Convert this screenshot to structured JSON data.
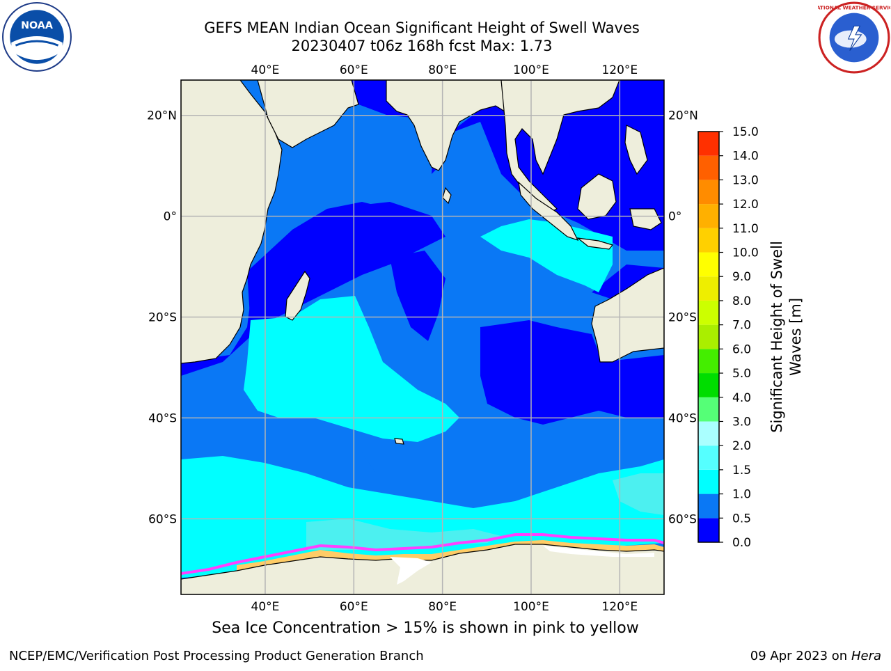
{
  "title": {
    "line1": "GEFS MEAN Indian Ocean Significant Height of Swell Waves",
    "line2": "20230407 t06z 168h fcst   Max: 1.73"
  },
  "map": {
    "lon_range": [
      21,
      130
    ],
    "lat_range": [
      -75,
      27
    ],
    "lon_ticks": [
      {
        "value": 40,
        "label": "40°E"
      },
      {
        "value": 60,
        "label": "60°E"
      },
      {
        "value": 80,
        "label": "80°E"
      },
      {
        "value": 100,
        "label": "100°E"
      },
      {
        "value": 120,
        "label": "120°E"
      }
    ],
    "lat_ticks": [
      {
        "value": 20,
        "label": "20°N"
      },
      {
        "value": 0,
        "label": "0°"
      },
      {
        "value": -20,
        "label": "20°S"
      },
      {
        "value": -40,
        "label": "40°S"
      },
      {
        "value": -60,
        "label": "60°S"
      }
    ],
    "grid": true,
    "colors": {
      "land": "#eeeedc",
      "coast": "#000000",
      "grid": "#b4b4b4",
      "band_0_0.5": "#0000ff",
      "band_0.5_1.0": "#0a78f5",
      "band_1.0_1.5": "#00ffff",
      "band_1.5_2.0": "#4cf0f0",
      "sea_ice_edge": "#ff40ff",
      "sea_ice_mid": "#ffcc66"
    }
  },
  "colorbar": {
    "title_line1": "Significant Height of Swell",
    "title_line2": "Waves [m]",
    "tick_labels": [
      "0.0",
      "0.5",
      "1.0",
      "1.5",
      "2.0",
      "3.0",
      "4.0",
      "5.0",
      "6.0",
      "7.0",
      "8.0",
      "9.0",
      "10.0",
      "11.0",
      "12.0",
      "13.0",
      "14.0",
      "15.0"
    ],
    "band_colors": [
      "#0000ff",
      "#0a78f5",
      "#00ffff",
      "#55ffff",
      "#aaffff",
      "#55ff77",
      "#00dd00",
      "#44ee00",
      "#aaee00",
      "#ccff00",
      "#eeee00",
      "#ffff00",
      "#ffd000",
      "#ffb000",
      "#ff8c00",
      "#ff6000",
      "#ff3000",
      "#ff0000"
    ]
  },
  "footnote": "Sea Ice Concentration > 15% is shown in pink to yellow",
  "credit_left": "NCEP/EMC/Verification Post Processing Product Generation Branch",
  "credit_right_date": "09 Apr 2023 on",
  "credit_right_machine": "Hera",
  "logos": {
    "noaa_text": "NOAA",
    "nws_text": "NATIONAL WEATHER SERVICE"
  }
}
